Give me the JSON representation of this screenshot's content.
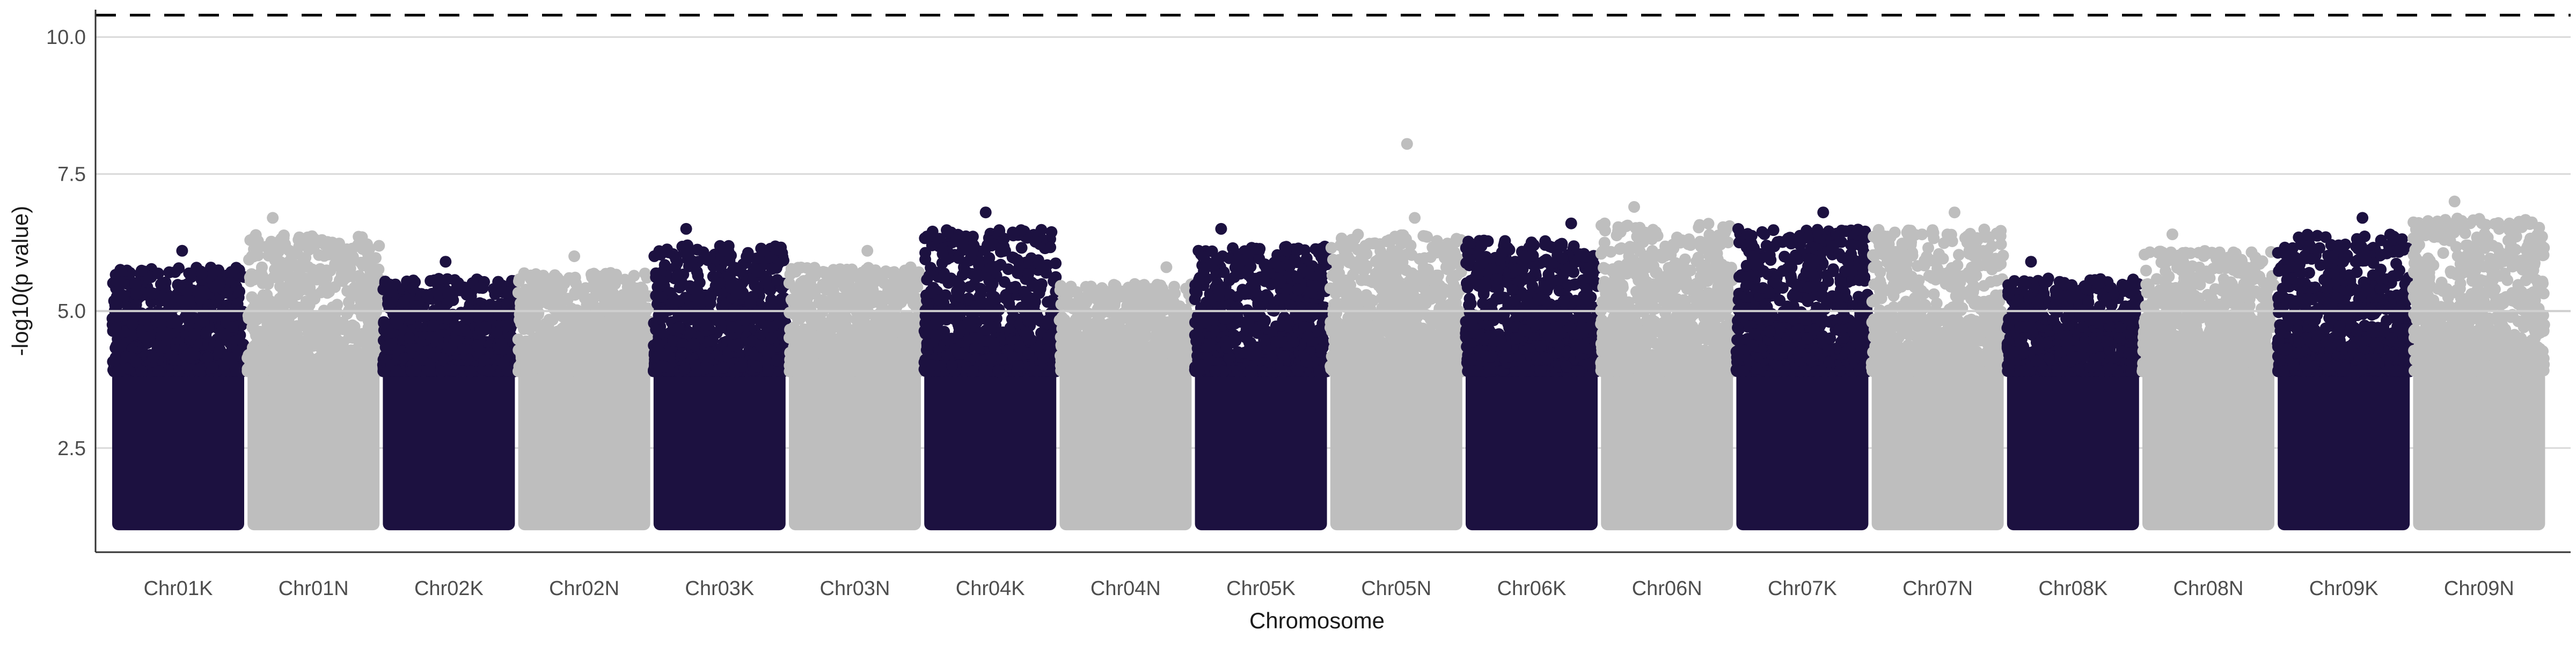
{
  "chart_data": {
    "type": "scatter",
    "title": "",
    "xlabel": "Chromosome",
    "ylabel": "-log10(p value)",
    "ylim": [
      0.6,
      10.5
    ],
    "yticks": [
      2.5,
      5.0,
      7.5,
      10.0
    ],
    "ytick_labels": [
      "2.5",
      "5.0",
      "7.5",
      "10.0"
    ],
    "grid": true,
    "legend": "none",
    "colors": {
      "odd": "#1c1140",
      "even": "#bebebe",
      "threshold_line": "#000000",
      "reference_line": "#cfcfcf"
    },
    "threshold_line": {
      "y": 10.4,
      "style": "dashed"
    },
    "reference_line": {
      "y": 5.0,
      "style": "solid"
    },
    "categories": [
      "Chr01K",
      "Chr01N",
      "Chr02K",
      "Chr02N",
      "Chr03K",
      "Chr03N",
      "Chr04K",
      "Chr04N",
      "Chr05K",
      "Chr05N",
      "Chr06K",
      "Chr06N",
      "Chr07K",
      "Chr07N",
      "Chr08K",
      "Chr08N",
      "Chr09K",
      "Chr09N"
    ],
    "series": [
      {
        "values": [
          6.1,
          6.7,
          5.9,
          6.0,
          6.5,
          6.1,
          6.8,
          5.8,
          6.5,
          6.7,
          6.6,
          6.9,
          6.8,
          6.8,
          5.9,
          6.4,
          6.7,
          7.0
        ]
      }
    ],
    "annotations": [
      {
        "category": "Chr05N",
        "y": 8.05
      }
    ],
    "point_floor": 1.0
  }
}
